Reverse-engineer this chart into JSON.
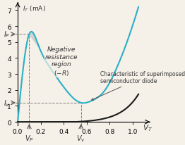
{
  "title": "",
  "xlabel": "$V_T$",
  "ylabel": "$I_T$ (mA)",
  "xlim": [
    -0.02,
    1.15
  ],
  "ylim": [
    -0.2,
    7.5
  ],
  "xticks": [
    0,
    0.2,
    0.4,
    0.6,
    0.8,
    1
  ],
  "yticks": [
    0,
    1,
    2,
    3,
    4,
    5,
    6,
    7
  ],
  "bg_color": "#f5f0e8",
  "tunnel_color": "#2ab0c8",
  "diode_color": "#1a1a1a",
  "shade_color": "#c0c0c0",
  "peak_V": 0.1,
  "peak_I": 5.5,
  "valley_V": 0.55,
  "valley_I": 1.2,
  "IP_label": "$I_P$",
  "IV_label": "$I_v$",
  "VP_label": "$V_P$",
  "VV_label": "$V_v$",
  "neg_res_text": "Negative\nresistance\nregion\n$(-R)$",
  "diode_label": "Characteristic of superimposed\nsemiconductor diode"
}
